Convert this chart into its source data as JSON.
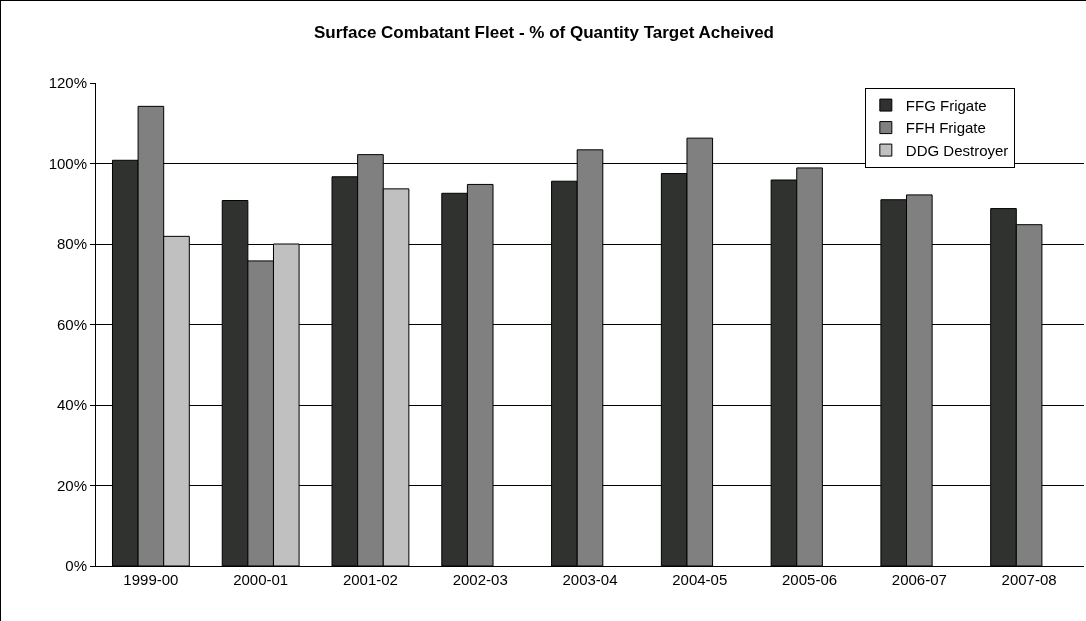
{
  "chart_data": {
    "type": "bar",
    "title": "Surface Combatant Fleet - % of Quantity Target Acheived",
    "categories": [
      "1999-00",
      "2000-01",
      "2001-02",
      "2002-03",
      "2003-04",
      "2004-05",
      "2005-06",
      "2006-07",
      "2007-08"
    ],
    "series": [
      {
        "name": "FFG Frigate",
        "color": "#303230",
        "values": [
          100.8,
          90.8,
          96.7,
          92.6,
          95.6,
          97.5,
          95.9,
          91.0,
          88.8
        ]
      },
      {
        "name": "FFH Frigate",
        "color": "#808080",
        "values": [
          114.2,
          75.8,
          102.2,
          94.8,
          103.4,
          106.3,
          98.9,
          92.2,
          84.8
        ]
      },
      {
        "name": "DDG Destroyer",
        "color": "#c0c0c0",
        "values": [
          81.9,
          80.0,
          93.7,
          null,
          null,
          null,
          null,
          null,
          null
        ]
      }
    ],
    "ylim": [
      0,
      120
    ],
    "yticks": [
      {
        "value": 0,
        "label": "0%"
      },
      {
        "value": 20,
        "label": "20%"
      },
      {
        "value": 40,
        "label": "40%"
      },
      {
        "value": 60,
        "label": "60%"
      },
      {
        "value": 80,
        "label": "80%"
      },
      {
        "value": 100,
        "label": "100%"
      },
      {
        "value": 120,
        "label": "120%"
      }
    ],
    "grid": "y",
    "legend": "top right"
  }
}
